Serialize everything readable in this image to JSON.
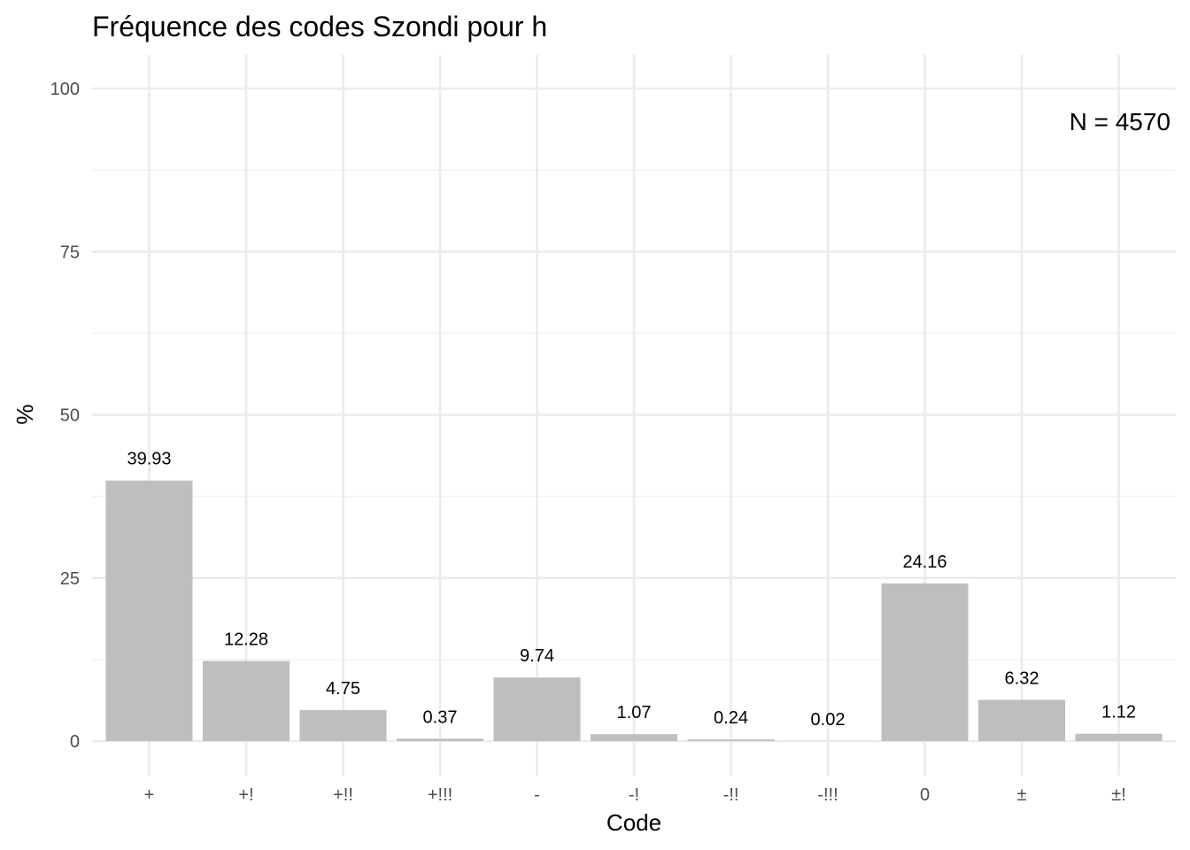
{
  "chart_data": {
    "type": "bar",
    "title": "Fréquence des codes Szondi pour h",
    "xlabel": "Code",
    "ylabel": "%",
    "categories": [
      "+",
      "+!",
      "+!!",
      "+!!!",
      "-",
      "-!",
      "-!!",
      "-!!!",
      "0",
      "±",
      "±!"
    ],
    "values": [
      39.93,
      12.28,
      4.75,
      0.37,
      9.74,
      1.07,
      0.24,
      0.02,
      24.16,
      6.32,
      1.12
    ],
    "data_labels": [
      "39.93",
      "12.28",
      "4.75",
      "0.37",
      "9.74",
      "1.07",
      "0.24",
      "0.02",
      "24.16",
      "6.32",
      "1.12"
    ],
    "ylim": [
      0,
      100
    ],
    "yticks": [
      0,
      25,
      50,
      75,
      100
    ],
    "annotation": "N = 4570",
    "grid": true,
    "bar_color": "#bebebe"
  }
}
